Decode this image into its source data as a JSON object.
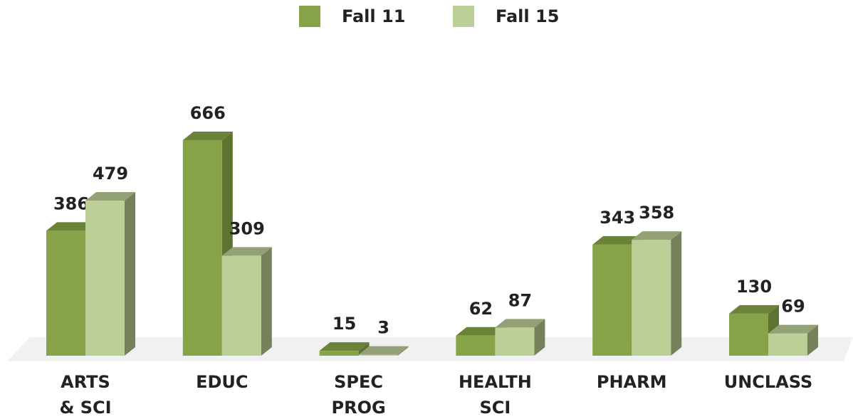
{
  "chart_data": {
    "type": "bar3d",
    "categories": [
      [
        "ARTS",
        "& SCI"
      ],
      [
        "EDUC"
      ],
      [
        "SPEC",
        "PROG"
      ],
      [
        "HEALTH",
        "SCI"
      ],
      [
        "PHARM"
      ],
      [
        "UNCLASS"
      ]
    ],
    "series": [
      {
        "name": "Fall 11",
        "color": "#86a447",
        "values": [
          386,
          666,
          15,
          62,
          343,
          130
        ]
      },
      {
        "name": "Fall 15",
        "color": "#bccf96",
        "values": [
          479,
          309,
          3,
          87,
          358,
          69
        ]
      }
    ],
    "legend": "top"
  }
}
